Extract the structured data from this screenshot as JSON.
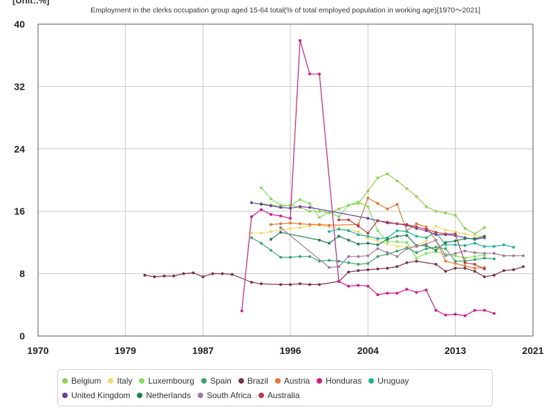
{
  "unit_label": "[Unit:.%]",
  "chart_data": {
    "type": "line",
    "title": "Employment in the clerks occupation group aged 15-64 total(% of total employed population in working age)[1970〜2021]",
    "xlim": [
      1970,
      2021
    ],
    "ylim": [
      0,
      40
    ],
    "x_ticks": [
      "1970",
      "1979",
      "1987",
      "1996",
      "2004",
      "2013",
      "2021"
    ],
    "y_ticks": [
      "0",
      "8",
      "16",
      "24",
      "32",
      "40"
    ],
    "grid": true,
    "legend_position": "bottom",
    "series": [
      {
        "name": "Belgium",
        "color": "#8fd14f",
        "points": [
          [
            1993,
            17.0
          ],
          [
            1994,
            16.8
          ],
          [
            1995,
            16.6
          ],
          [
            1996,
            16.8
          ],
          [
            1997,
            16.5
          ],
          [
            1998,
            16.0
          ],
          [
            1999,
            16.0
          ],
          [
            2000,
            15.8
          ],
          [
            2001,
            16.3
          ],
          [
            2002,
            16.8
          ],
          [
            2003,
            17.0
          ],
          [
            2004,
            18.6
          ],
          [
            2005,
            20.3
          ],
          [
            2006,
            20.8
          ],
          [
            2007,
            19.9
          ],
          [
            2008,
            18.9
          ],
          [
            2009,
            17.9
          ],
          [
            2010,
            16.6
          ],
          [
            2011,
            16.0
          ],
          [
            2012,
            15.8
          ],
          [
            2013,
            15.5
          ],
          [
            2014,
            13.8
          ],
          [
            2015,
            13.1
          ],
          [
            2016,
            13.9
          ]
        ]
      },
      {
        "name": "Italy",
        "color": "#f7d774",
        "points": [
          [
            1992,
            13.2
          ],
          [
            1993,
            13.2
          ],
          [
            1994,
            13.4
          ],
          [
            1995,
            13.6
          ],
          [
            1996,
            13.8
          ],
          [
            1997,
            13.9
          ],
          [
            1998,
            14.1
          ],
          [
            1999,
            14.2
          ],
          [
            2000,
            14.0
          ],
          [
            2001,
            13.8
          ],
          [
            2002,
            13.6
          ],
          [
            2003,
            13.4
          ],
          [
            2004,
            12.5
          ],
          [
            2005,
            12.2
          ],
          [
            2006,
            11.8
          ],
          [
            2007,
            11.5
          ],
          [
            2008,
            11.4
          ],
          [
            2009,
            11.6
          ],
          [
            2010,
            12.2
          ],
          [
            2011,
            14.1
          ],
          [
            2012,
            13.6
          ],
          [
            2013,
            13.4
          ],
          [
            2014,
            13.1
          ],
          [
            2015,
            12.9
          ],
          [
            2016,
            12.7
          ]
        ]
      },
      {
        "name": "Luxembourg",
        "color": "#7be35c",
        "points": [
          [
            1993,
            19.0
          ],
          [
            1994,
            17.6
          ],
          [
            1995,
            16.8
          ],
          [
            1996,
            16.7
          ],
          [
            1997,
            17.5
          ],
          [
            1998,
            17.0
          ],
          [
            1999,
            15.2
          ],
          [
            2000,
            15.9
          ],
          [
            2001,
            15.3
          ],
          [
            2002,
            16.8
          ],
          [
            2003,
            17.2
          ],
          [
            2004,
            16.6
          ],
          [
            2005,
            13.5
          ],
          [
            2006,
            12.1
          ],
          [
            2007,
            12.1
          ],
          [
            2008,
            12.0
          ],
          [
            2009,
            10.0
          ],
          [
            2010,
            10.6
          ],
          [
            2011,
            10.8
          ],
          [
            2012,
            10.5
          ],
          [
            2013,
            10.3
          ],
          [
            2014,
            10.0
          ],
          [
            2015,
            10.2
          ],
          [
            2016,
            10.4
          ]
        ]
      },
      {
        "name": "Spain",
        "color": "#3aa66c",
        "points": [
          [
            1992,
            12.6
          ],
          [
            1993,
            11.9
          ],
          [
            1994,
            11.0
          ],
          [
            1995,
            10.1
          ],
          [
            1996,
            10.1
          ],
          [
            1997,
            10.2
          ],
          [
            1998,
            10.2
          ],
          [
            1999,
            9.6
          ],
          [
            2000,
            9.7
          ],
          [
            2001,
            9.6
          ],
          [
            2002,
            9.4
          ],
          [
            2003,
            9.2
          ],
          [
            2004,
            9.3
          ],
          [
            2005,
            10.2
          ],
          [
            2006,
            10.5
          ],
          [
            2007,
            10.9
          ],
          [
            2008,
            11.3
          ],
          [
            2009,
            10.7
          ],
          [
            2010,
            11.2
          ],
          [
            2011,
            11.4
          ],
          [
            2012,
            11.2
          ],
          [
            2013,
            9.6
          ],
          [
            2014,
            9.6
          ],
          [
            2015,
            9.8
          ],
          [
            2016,
            10.0
          ],
          [
            2017,
            9.9
          ]
        ]
      },
      {
        "name": "Brazil",
        "color": "#7a2f4a",
        "points": [
          [
            1981,
            7.8
          ],
          [
            1982,
            7.6
          ],
          [
            1983,
            7.7
          ],
          [
            1984,
            7.7
          ],
          [
            1985,
            8.0
          ],
          [
            1986,
            8.1
          ],
          [
            1987,
            7.6
          ],
          [
            1988,
            8.0
          ],
          [
            1989,
            8.0
          ],
          [
            1990,
            7.9
          ],
          [
            1992,
            6.9
          ],
          [
            1993,
            6.7
          ],
          [
            1995,
            6.6
          ],
          [
            1996,
            6.6
          ],
          [
            1997,
            6.7
          ],
          [
            1998,
            6.6
          ],
          [
            1999,
            6.6
          ],
          [
            2001,
            7.0
          ],
          [
            2002,
            8.2
          ],
          [
            2003,
            8.4
          ],
          [
            2004,
            8.5
          ],
          [
            2005,
            8.6
          ],
          [
            2006,
            8.7
          ],
          [
            2007,
            8.9
          ],
          [
            2008,
            9.4
          ],
          [
            2009,
            9.6
          ],
          [
            2011,
            9.2
          ],
          [
            2012,
            8.3
          ],
          [
            2013,
            8.7
          ],
          [
            2014,
            8.7
          ],
          [
            2015,
            8.3
          ],
          [
            2016,
            7.6
          ],
          [
            2017,
            7.8
          ],
          [
            2018,
            8.4
          ],
          [
            2019,
            8.5
          ],
          [
            2020,
            8.9
          ]
        ]
      },
      {
        "name": "Austria",
        "color": "#e8762c",
        "points": [
          [
            1994,
            14.3
          ],
          [
            1995,
            14.4
          ],
          [
            1996,
            14.5
          ],
          [
            1997,
            14.4
          ],
          [
            1998,
            14.3
          ],
          [
            1999,
            14.3
          ],
          [
            2000,
            14.2
          ],
          [
            2003,
            14.3
          ],
          [
            2004,
            17.7
          ],
          [
            2005,
            17.0
          ],
          [
            2006,
            16.3
          ],
          [
            2007,
            16.9
          ],
          [
            2008,
            13.5
          ],
          [
            2009,
            14.4
          ],
          [
            2010,
            14.0
          ],
          [
            2011,
            12.3
          ],
          [
            2012,
            9.6
          ],
          [
            2013,
            9.3
          ],
          [
            2014,
            9.0
          ],
          [
            2015,
            8.7
          ],
          [
            2016,
            8.8
          ]
        ]
      },
      {
        "name": "Honduras",
        "color": "#d4178c",
        "points": [
          [
            1991,
            3.2
          ],
          [
            1992,
            15.3
          ],
          [
            1993,
            16.2
          ],
          [
            1994,
            15.6
          ],
          [
            1995,
            15.4
          ],
          [
            1996,
            15.1
          ],
          [
            1997,
            37.9
          ],
          [
            1998,
            33.6
          ],
          [
            1999,
            33.6
          ],
          [
            2001,
            7.0
          ],
          [
            2002,
            6.4
          ],
          [
            2003,
            6.5
          ],
          [
            2004,
            6.4
          ],
          [
            2005,
            5.3
          ],
          [
            2006,
            5.5
          ],
          [
            2007,
            5.5
          ],
          [
            2008,
            6.0
          ],
          [
            2009,
            5.6
          ],
          [
            2010,
            5.9
          ],
          [
            2011,
            3.3
          ],
          [
            2012,
            2.7
          ],
          [
            2013,
            2.8
          ],
          [
            2014,
            2.6
          ],
          [
            2015,
            3.3
          ],
          [
            2016,
            3.3
          ],
          [
            2017,
            2.9
          ]
        ]
      },
      {
        "name": "Uruguay",
        "color": "#1fb39a",
        "points": [
          [
            2000,
            13.4
          ],
          [
            2001,
            13.7
          ],
          [
            2002,
            13.5
          ],
          [
            2003,
            13.0
          ],
          [
            2004,
            12.8
          ],
          [
            2005,
            12.5
          ],
          [
            2006,
            12.6
          ],
          [
            2007,
            13.5
          ],
          [
            2008,
            13.4
          ],
          [
            2009,
            12.8
          ],
          [
            2010,
            12.6
          ],
          [
            2011,
            13.3
          ],
          [
            2012,
            11.7
          ],
          [
            2013,
            11.7
          ],
          [
            2014,
            11.6
          ],
          [
            2015,
            11.9
          ],
          [
            2016,
            11.5
          ],
          [
            2017,
            11.5
          ],
          [
            2018,
            11.7
          ],
          [
            2019,
            11.4
          ]
        ]
      },
      {
        "name": "United Kingdom",
        "color": "#6b3fa0",
        "points": [
          [
            1992,
            17.1
          ],
          [
            1993,
            16.9
          ],
          [
            1994,
            16.7
          ],
          [
            1995,
            16.5
          ],
          [
            1996,
            16.4
          ],
          [
            1997,
            16.6
          ],
          [
            1998,
            16.5
          ],
          [
            2004,
            15.1
          ],
          [
            2005,
            14.8
          ],
          [
            2006,
            14.5
          ],
          [
            2007,
            14.4
          ],
          [
            2008,
            14.2
          ],
          [
            2009,
            13.8
          ],
          [
            2010,
            13.5
          ],
          [
            2011,
            13.0
          ],
          [
            2012,
            13.0
          ],
          [
            2013,
            12.9
          ],
          [
            2014,
            12.6
          ],
          [
            2015,
            12.4
          ],
          [
            2016,
            12.6
          ]
        ]
      },
      {
        "name": "Netherlands",
        "color": "#1e7f4f",
        "points": [
          [
            1994,
            12.4
          ],
          [
            1995,
            13.3
          ],
          [
            1999,
            12.3
          ],
          [
            2000,
            11.9
          ],
          [
            2001,
            12.8
          ],
          [
            2002,
            12.3
          ],
          [
            2003,
            11.8
          ],
          [
            2004,
            11.9
          ],
          [
            2005,
            11.7
          ],
          [
            2006,
            12.4
          ],
          [
            2007,
            12.8
          ],
          [
            2008,
            12.9
          ],
          [
            2009,
            11.6
          ],
          [
            2010,
            11.6
          ],
          [
            2011,
            11.0
          ],
          [
            2012,
            12.0
          ],
          [
            2013,
            12.2
          ],
          [
            2014,
            12.5
          ],
          [
            2015,
            12.5
          ],
          [
            2016,
            12.8
          ]
        ]
      },
      {
        "name": "South Africa",
        "color": "#a07b9c",
        "points": [
          [
            1995,
            13.9
          ],
          [
            2000,
            8.8
          ],
          [
            2001,
            8.9
          ],
          [
            2002,
            10.2
          ],
          [
            2003,
            10.2
          ],
          [
            2004,
            10.3
          ],
          [
            2005,
            11.2
          ],
          [
            2006,
            10.7
          ],
          [
            2007,
            10.2
          ],
          [
            2008,
            11.2
          ],
          [
            2009,
            11.5
          ],
          [
            2010,
            11.8
          ],
          [
            2011,
            12.3
          ],
          [
            2012,
            10.3
          ],
          [
            2013,
            10.6
          ],
          [
            2014,
            10.9
          ],
          [
            2015,
            10.7
          ],
          [
            2016,
            10.6
          ],
          [
            2017,
            10.6
          ],
          [
            2018,
            10.3
          ],
          [
            2019,
            10.3
          ],
          [
            2020,
            10.3
          ]
        ]
      },
      {
        "name": "Australia",
        "color": "#c0394b",
        "points": [
          [
            2001,
            14.9
          ],
          [
            2002,
            14.9
          ],
          [
            2003,
            14.1
          ],
          [
            2004,
            13.2
          ],
          [
            2005,
            14.8
          ],
          [
            2006,
            14.6
          ],
          [
            2007,
            14.4
          ],
          [
            2008,
            14.3
          ],
          [
            2009,
            14.0
          ],
          [
            2010,
            13.7
          ],
          [
            2011,
            13.3
          ],
          [
            2012,
            13.1
          ],
          [
            2013,
            13.1
          ],
          [
            2014,
            9.4
          ],
          [
            2015,
            9.2
          ],
          [
            2016,
            8.6
          ]
        ]
      }
    ]
  }
}
